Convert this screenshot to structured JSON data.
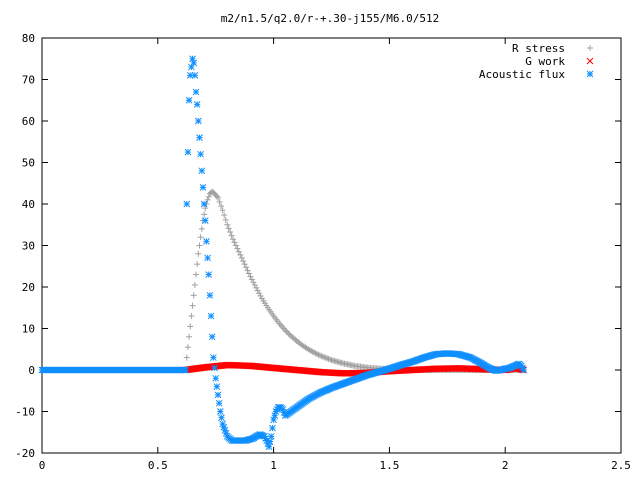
{
  "chart_data": {
    "type": "scatter",
    "title": "m2/n1.5/q2.0/r-+.30-j155/M6.0/512",
    "xlabel": "",
    "ylabel": "",
    "xlim": [
      0,
      2.5
    ],
    "ylim": [
      -20,
      80
    ],
    "x_ticks": [
      "0",
      "0.5",
      "1",
      "1.5",
      "2",
      "2.5"
    ],
    "y_ticks": [
      "-20",
      "-10",
      "0",
      "10",
      "20",
      "30",
      "40",
      "50",
      "60",
      "70",
      "80"
    ],
    "grid": false,
    "legend_position": "top-right",
    "series": [
      {
        "name": "R stress",
        "marker": "plus",
        "color": "#a0a0a0",
        "x": [
          0.625,
          0.635,
          0.645,
          0.655,
          0.665,
          0.675,
          0.685,
          0.695,
          0.705,
          0.715,
          0.725,
          0.735,
          0.745,
          0.76,
          0.78,
          0.8,
          0.825,
          0.85,
          0.875,
          0.9,
          0.925,
          0.95,
          0.975,
          1.0,
          1.025,
          1.05,
          1.075,
          1.1,
          1.125,
          1.15,
          1.175,
          1.2,
          1.25,
          1.3,
          1.35,
          1.4,
          1.45,
          1.5,
          1.55,
          1.6,
          1.7,
          1.8,
          1.9,
          2.0,
          2.08
        ],
        "y": [
          3,
          8,
          13,
          18,
          23,
          28,
          32,
          36,
          39,
          41,
          42.5,
          43,
          42.5,
          41.5,
          38.5,
          35,
          31.5,
          28.5,
          25.5,
          22.5,
          19.8,
          17.2,
          15,
          13,
          11.2,
          9.6,
          8.2,
          7,
          5.9,
          5,
          4.2,
          3.5,
          2.4,
          1.6,
          1.0,
          0.6,
          0.35,
          0.2,
          0.1,
          0.05,
          0,
          0,
          0,
          0,
          0
        ]
      },
      {
        "name": "G work",
        "marker": "cross",
        "color": "#ff0000",
        "x": [
          0.62,
          0.7,
          0.8,
          0.9,
          1.0,
          1.1,
          1.2,
          1.3,
          1.4,
          1.5,
          1.6,
          1.7,
          1.8,
          1.9,
          2.0,
          2.05,
          2.08
        ],
        "y": [
          0,
          0.6,
          1.2,
          1.0,
          0.5,
          0,
          -0.5,
          -0.8,
          -0.7,
          -0.3,
          0,
          0.3,
          0.4,
          0.2,
          0,
          0.5,
          0
        ]
      },
      {
        "name": "Acoustic flux",
        "marker": "star",
        "color": "#0f8fff",
        "x": [
          0.0,
          0.1,
          0.2,
          0.3,
          0.4,
          0.5,
          0.6,
          0.62,
          0.625,
          0.635,
          0.64,
          0.645,
          0.65,
          0.655,
          0.66,
          0.665,
          0.67,
          0.675,
          0.68,
          0.685,
          0.69,
          0.695,
          0.7,
          0.705,
          0.71,
          0.715,
          0.72,
          0.725,
          0.73,
          0.735,
          0.74,
          0.75,
          0.76,
          0.77,
          0.78,
          0.8,
          0.82,
          0.85,
          0.88,
          0.91,
          0.94,
          0.96,
          0.97,
          0.98,
          0.99,
          1.0,
          1.01,
          1.02,
          1.03,
          1.04,
          1.05,
          1.1,
          1.15,
          1.2,
          1.25,
          1.3,
          1.35,
          1.4,
          1.45,
          1.5,
          1.55,
          1.6,
          1.65,
          1.7,
          1.75,
          1.8,
          1.85,
          1.9,
          1.93,
          1.96,
          1.98,
          2.0,
          2.02,
          2.04,
          2.06,
          2.07,
          2.08
        ],
        "y": [
          0,
          0,
          0,
          0,
          0,
          0,
          0,
          0,
          40,
          65,
          71,
          73,
          75,
          74,
          71,
          67,
          64,
          60,
          56,
          52,
          48,
          44,
          40,
          36,
          31,
          27,
          23,
          18,
          13,
          8,
          3,
          -2,
          -6,
          -10,
          -13,
          -16,
          -17,
          -17,
          -17,
          -16.5,
          -15.5,
          -16,
          -17,
          -18.5,
          -16,
          -12,
          -10,
          -9,
          -9,
          -9.5,
          -11,
          -9,
          -7,
          -5.5,
          -4.3,
          -3.3,
          -2.3,
          -1.3,
          -0.5,
          0.3,
          1.2,
          2,
          3,
          3.8,
          4,
          3.8,
          3,
          1.5,
          0.5,
          -0.2,
          0,
          0.3,
          0.5,
          1,
          1.5,
          1,
          0
        ]
      }
    ]
  }
}
